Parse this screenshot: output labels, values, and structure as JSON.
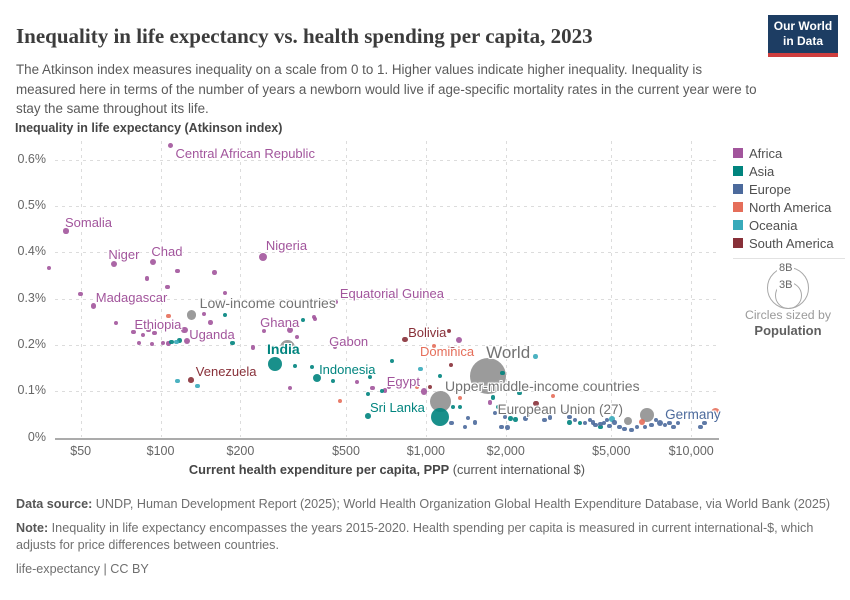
{
  "header": {
    "title": "Inequality in life expectancy vs. health spending per capita, 2023",
    "subtitle": "The Atkinson index measures inequality on a scale from 0 to 1. Higher values indicate higher inequality. Inequality is measured here in terms of the number of years a newborn would live if age-specific mortality rates in the current year were to stay the same throughout its life.",
    "logo_line1": "Our World",
    "logo_line2": "in Data"
  },
  "axes": {
    "y_title": "Inequality in life expectancy (Atkinson index)",
    "x_title_bold": "Current health expenditure per capita, PPP",
    "x_title_rest": " (current international $)"
  },
  "legend": {
    "items": [
      {
        "label": "Africa",
        "color": "#a2559c"
      },
      {
        "label": "Asia",
        "color": "#00847e"
      },
      {
        "label": "Europe",
        "color": "#4c6a9c"
      },
      {
        "label": "North America",
        "color": "#e56e5a"
      },
      {
        "label": "Oceania",
        "color": "#38aaba"
      },
      {
        "label": "South America",
        "color": "#883039"
      }
    ],
    "size_legend": {
      "big": "8B",
      "small": "3B",
      "caption1": "Circles sized by",
      "caption2": "Population"
    }
  },
  "footer": {
    "source_bold": "Data source:",
    "source_rest": " UNDP, Human Development Report (2025); World Health Organization Global Health Expenditure Database, via World Bank (2025)",
    "note_bold": "Note:",
    "note_rest": " Inequality in life expectancy encompasses the years 2015-2020. Health spending per capita is measured in current international-$, which adjusts for price differences between countries.",
    "license": "life-expectancy | CC BY"
  },
  "chart_data": {
    "type": "scatter",
    "x_scale": "log",
    "xlabel": "Current health expenditure per capita, PPP (current international $)",
    "ylabel": "Inequality in life expectancy (Atkinson index)",
    "x_ticks": [
      {
        "v": 50,
        "label": "$50"
      },
      {
        "v": 100,
        "label": "$100"
      },
      {
        "v": 200,
        "label": "$200"
      },
      {
        "v": 500,
        "label": "$500"
      },
      {
        "v": 1000,
        "label": "$1,000"
      },
      {
        "v": 2000,
        "label": "$2,000"
      },
      {
        "v": 5000,
        "label": "$5,000"
      },
      {
        "v": 10000,
        "label": "$10,000"
      }
    ],
    "y_ticks": [
      {
        "v": 0,
        "label": "0%"
      },
      {
        "v": 0.1,
        "label": "0.1%"
      },
      {
        "v": 0.2,
        "label": "0.2%"
      },
      {
        "v": 0.3,
        "label": "0.3%"
      },
      {
        "v": 0.4,
        "label": "0.4%"
      },
      {
        "v": 0.5,
        "label": "0.5%"
      },
      {
        "v": 0.6,
        "label": "0.6%"
      }
    ],
    "x_domain": [
      38,
      13000
    ],
    "y_domain": [
      0,
      0.66
    ],
    "grid": true,
    "legend_position": "right",
    "colors": {
      "africa": "#a2559c",
      "asia": "#00847e",
      "europe": "#4c6a9c",
      "northamerica": "#e56e5a",
      "oceania": "#38aaba",
      "southamerica": "#883039",
      "gray": "#8a8a8a",
      "gray_label": "#737373"
    },
    "points": [
      {
        "n": "Central African Republic",
        "x": 109,
        "y": 0.63,
        "r": 2.5,
        "c": "africa",
        "lb": [
          5,
          0,
          13
        ]
      },
      {
        "n": "Somalia",
        "x": 44,
        "y": 0.446,
        "r": 2.6,
        "c": "africa",
        "lb": [
          -1,
          -16,
          13
        ]
      },
      {
        "n": "Niger",
        "x": 67,
        "y": 0.375,
        "r": 3,
        "c": "africa",
        "lb": [
          -6,
          -17,
          13
        ]
      },
      {
        "n": "Chad",
        "x": 94,
        "y": 0.379,
        "r": 3,
        "c": "africa",
        "lb": [
          -2,
          -18,
          13
        ]
      },
      {
        "n": "Nigeria",
        "x": 243,
        "y": 0.39,
        "r": 4.2,
        "c": "africa",
        "lb": [
          3,
          -19,
          13
        ]
      },
      {
        "n": "Madagascar",
        "x": 56,
        "y": 0.284,
        "r": 2.6,
        "c": "africa",
        "lb": [
          2,
          -16,
          13
        ]
      },
      {
        "n": "Equatorial Guinea",
        "x": 458,
        "y": 0.293,
        "r": 2,
        "c": "africa",
        "lb": [
          4,
          -16,
          13
        ]
      },
      {
        "n": "Low-income countries",
        "x": 131,
        "y": 0.265,
        "r": 4.8,
        "c": "gray",
        "lb": [
          8,
          -20,
          14
        ]
      },
      {
        "n": "Ethiopia",
        "x": 123,
        "y": 0.232,
        "r": 3.4,
        "c": "africa",
        "lb": [
          -3,
          -13,
          13,
          "end"
        ]
      },
      {
        "n": "Uganda",
        "x": 126,
        "y": 0.208,
        "r": 3,
        "c": "africa",
        "lb": [
          2,
          -14,
          13
        ]
      },
      {
        "n": "Ghana",
        "x": 308,
        "y": 0.232,
        "r": 3,
        "c": "africa",
        "lb": [
          -30,
          -15,
          13
        ]
      },
      {
        "n": "Gabon",
        "x": 455,
        "y": 0.195,
        "r": 2,
        "c": "africa",
        "lb": [
          -6,
          -13,
          13
        ]
      },
      {
        "n": "India",
        "x": 270,
        "y": 0.158,
        "r": 7,
        "c": "asia",
        "lb": [
          -8,
          -23,
          14,
          "start",
          1
        ]
      },
      {
        "n": "Venezuela",
        "x": 130,
        "y": 0.124,
        "r": 2.8,
        "c": "southamerica",
        "lb": [
          5,
          -16,
          13
        ]
      },
      {
        "n": "Indonesia",
        "x": 389,
        "y": 0.129,
        "r": 4,
        "c": "asia",
        "lb": [
          2,
          -16,
          13
        ]
      },
      {
        "n": "Bolivia",
        "x": 835,
        "y": 0.211,
        "r": 2.6,
        "c": "southamerica",
        "lb": [
          3,
          -15,
          13
        ]
      },
      {
        "n": "Dominica",
        "x": 1073,
        "y": 0.198,
        "r": 2,
        "c": "northamerica",
        "lb": [
          -14,
          -2,
          13
        ]
      },
      {
        "n": "Egypt",
        "x": 984,
        "y": 0.1,
        "r": 3.4,
        "c": "africa",
        "lb": [
          -4,
          -17,
          13,
          "end"
        ]
      },
      {
        "n": "Sri Lanka",
        "x": 605,
        "y": 0.046,
        "r": 2.8,
        "c": "asia",
        "lb": [
          2,
          -16,
          13
        ]
      },
      {
        "n": "World",
        "x": 1716,
        "y": 0.133,
        "r": 18,
        "c": "gray",
        "lb": [
          -2,
          -33,
          17
        ]
      },
      {
        "n": "Upper-middle-income countries",
        "x": 1131,
        "y": 0.077,
        "r": 10.5,
        "c": "gray",
        "lb": [
          5,
          -24,
          14
        ]
      },
      {
        "n": "European Union (27)",
        "x": 5780,
        "y": 0.036,
        "r": 4.2,
        "c": "gray",
        "lb": [
          -5,
          -19,
          13.5,
          "end"
        ]
      },
      {
        "n": "Germany",
        "x": 7635,
        "y": 0.031,
        "r": 3.2,
        "c": "europe",
        "lb": [
          5,
          -16,
          13.5
        ]
      },
      {
        "x": 1131,
        "y": 0.045,
        "r": 9,
        "c": "asia"
      },
      {
        "x": 300,
        "y": 0.195,
        "r": 7.5,
        "c": "gray"
      },
      {
        "x": 6815,
        "y": 0.049,
        "r": 7,
        "c": "gray"
      },
      {
        "x": 12300,
        "y": 0.055,
        "r": 4.5,
        "c": "northamerica"
      },
      {
        "x": 38,
        "y": 0.366,
        "c": "africa"
      },
      {
        "x": 50,
        "y": 0.31,
        "c": "africa"
      },
      {
        "x": 89,
        "y": 0.344,
        "c": "africa"
      },
      {
        "x": 106,
        "y": 0.325,
        "c": "africa"
      },
      {
        "x": 116,
        "y": 0.36,
        "c": "africa"
      },
      {
        "x": 160,
        "y": 0.357,
        "c": "africa"
      },
      {
        "x": 175,
        "y": 0.312,
        "c": "africa"
      },
      {
        "x": 68,
        "y": 0.247,
        "c": "africa"
      },
      {
        "x": 79,
        "y": 0.228,
        "c": "africa"
      },
      {
        "x": 86,
        "y": 0.221,
        "c": "africa"
      },
      {
        "x": 90,
        "y": 0.232,
        "c": "africa"
      },
      {
        "x": 95,
        "y": 0.226,
        "c": "africa"
      },
      {
        "x": 146,
        "y": 0.267,
        "c": "africa"
      },
      {
        "x": 154,
        "y": 0.249,
        "c": "africa"
      },
      {
        "x": 83,
        "y": 0.204,
        "c": "africa"
      },
      {
        "x": 93,
        "y": 0.202,
        "c": "africa"
      },
      {
        "x": 102,
        "y": 0.204,
        "c": "africa"
      },
      {
        "x": 107,
        "y": 0.203,
        "c": "africa"
      },
      {
        "x": 223,
        "y": 0.195,
        "c": "africa"
      },
      {
        "x": 245,
        "y": 0.23,
        "c": "africa"
      },
      {
        "x": 379,
        "y": 0.26,
        "c": "africa"
      },
      {
        "x": 327,
        "y": 0.217,
        "c": "africa"
      },
      {
        "x": 382,
        "y": 0.256,
        "c": "africa"
      },
      {
        "x": 308,
        "y": 0.107,
        "c": "africa"
      },
      {
        "x": 550,
        "y": 0.12,
        "c": "africa"
      },
      {
        "x": 630,
        "y": 0.107,
        "c": "africa"
      },
      {
        "x": 726,
        "y": 0.109,
        "c": "africa"
      },
      {
        "x": 701,
        "y": 0.102,
        "c": "africa"
      },
      {
        "x": 1334,
        "y": 0.211,
        "r": 3,
        "c": "africa"
      },
      {
        "x": 1745,
        "y": 0.075,
        "c": "africa"
      },
      {
        "x": 175,
        "y": 0.265,
        "c": "asia"
      },
      {
        "x": 110,
        "y": 0.206,
        "c": "asia"
      },
      {
        "x": 118,
        "y": 0.21,
        "c": "asia"
      },
      {
        "x": 187,
        "y": 0.204,
        "c": "asia"
      },
      {
        "x": 344,
        "y": 0.254,
        "c": "asia"
      },
      {
        "x": 372,
        "y": 0.152,
        "c": "asia"
      },
      {
        "x": 321,
        "y": 0.154,
        "c": "asia"
      },
      {
        "x": 447,
        "y": 0.122,
        "c": "asia"
      },
      {
        "x": 616,
        "y": 0.131,
        "c": "asia"
      },
      {
        "x": 683,
        "y": 0.1,
        "c": "asia"
      },
      {
        "x": 745,
        "y": 0.165,
        "c": "asia"
      },
      {
        "x": 605,
        "y": 0.094,
        "c": "asia"
      },
      {
        "x": 1266,
        "y": 0.066,
        "c": "asia"
      },
      {
        "x": 1345,
        "y": 0.066,
        "c": "asia"
      },
      {
        "x": 1790,
        "y": 0.087,
        "c": "asia"
      },
      {
        "x": 2250,
        "y": 0.096,
        "c": "asia"
      },
      {
        "x": 3810,
        "y": 0.031,
        "c": "asia"
      },
      {
        "x": 4560,
        "y": 0.023,
        "c": "asia"
      },
      {
        "x": 1131,
        "y": 0.133,
        "c": "asia"
      },
      {
        "x": 1940,
        "y": 0.139,
        "c": "asia"
      },
      {
        "x": 1870,
        "y": 0.066,
        "c": "asia"
      },
      {
        "x": 2080,
        "y": 0.041,
        "c": "asia"
      },
      {
        "x": 2180,
        "y": 0.039,
        "c": "asia"
      },
      {
        "x": 3480,
        "y": 0.033,
        "c": "asia"
      },
      {
        "x": 1442,
        "y": 0.042,
        "c": "europe"
      },
      {
        "x": 1823,
        "y": 0.053,
        "c": "europe"
      },
      {
        "x": 1988,
        "y": 0.044,
        "c": "europe"
      },
      {
        "x": 2167,
        "y": 0.055,
        "c": "europe"
      },
      {
        "x": 1533,
        "y": 0.033,
        "c": "europe"
      },
      {
        "x": 1404,
        "y": 0.023,
        "c": "europe"
      },
      {
        "x": 1930,
        "y": 0.023,
        "c": "europe"
      },
      {
        "x": 2032,
        "y": 0.021,
        "c": "europe"
      },
      {
        "x": 1250,
        "y": 0.031,
        "c": "europe"
      },
      {
        "x": 2380,
        "y": 0.041,
        "c": "europe"
      },
      {
        "x": 2430,
        "y": 0.049,
        "c": "europe"
      },
      {
        "x": 2800,
        "y": 0.038,
        "c": "europe"
      },
      {
        "x": 2940,
        "y": 0.043,
        "c": "europe"
      },
      {
        "x": 3346,
        "y": 0.053,
        "c": "europe"
      },
      {
        "x": 3480,
        "y": 0.044,
        "c": "europe"
      },
      {
        "x": 3650,
        "y": 0.038,
        "c": "europe"
      },
      {
        "x": 3980,
        "y": 0.031,
        "c": "europe"
      },
      {
        "x": 4160,
        "y": 0.038,
        "c": "europe"
      },
      {
        "x": 4350,
        "y": 0.027,
        "c": "europe"
      },
      {
        "x": 4690,
        "y": 0.031,
        "c": "europe"
      },
      {
        "x": 4920,
        "y": 0.025,
        "c": "europe"
      },
      {
        "x": 5140,
        "y": 0.033,
        "c": "europe"
      },
      {
        "x": 5370,
        "y": 0.023,
        "c": "europe"
      },
      {
        "x": 5610,
        "y": 0.018,
        "c": "europe"
      },
      {
        "x": 5960,
        "y": 0.016,
        "c": "europe"
      },
      {
        "x": 6240,
        "y": 0.023,
        "c": "europe"
      },
      {
        "x": 6700,
        "y": 0.023,
        "c": "europe"
      },
      {
        "x": 7080,
        "y": 0.027,
        "c": "europe"
      },
      {
        "x": 7380,
        "y": 0.038,
        "c": "europe"
      },
      {
        "x": 7960,
        "y": 0.027,
        "c": "europe"
      },
      {
        "x": 8280,
        "y": 0.031,
        "c": "europe"
      },
      {
        "x": 8600,
        "y": 0.023,
        "c": "europe"
      },
      {
        "x": 8920,
        "y": 0.031,
        "c": "europe"
      },
      {
        "x": 10850,
        "y": 0.023,
        "c": "europe"
      },
      {
        "x": 11240,
        "y": 0.031,
        "c": "europe"
      },
      {
        "x": 4267,
        "y": 0.033,
        "c": "europe"
      },
      {
        "x": 4560,
        "y": 0.029,
        "c": "europe"
      },
      {
        "x": 4815,
        "y": 0.038,
        "c": "europe"
      },
      {
        "x": 107,
        "y": 0.262,
        "c": "northamerica"
      },
      {
        "x": 475,
        "y": 0.079,
        "c": "northamerica"
      },
      {
        "x": 926,
        "y": 0.109,
        "c": "northamerica"
      },
      {
        "x": 1345,
        "y": 0.085,
        "c": "northamerica"
      },
      {
        "x": 3016,
        "y": 0.09,
        "c": "northamerica"
      },
      {
        "x": 6530,
        "y": 0.033,
        "r": 3,
        "c": "northamerica"
      },
      {
        "x": 116,
        "y": 0.122,
        "c": "oceania"
      },
      {
        "x": 138,
        "y": 0.111,
        "c": "oceania"
      },
      {
        "x": 2590,
        "y": 0.175,
        "c": "oceania"
      },
      {
        "x": 953,
        "y": 0.148,
        "c": "oceania"
      },
      {
        "x": 5030,
        "y": 0.04,
        "r": 2.8,
        "c": "oceania"
      },
      {
        "x": 115,
        "y": 0.206,
        "c": "oceania"
      },
      {
        "x": 1244,
        "y": 0.157,
        "c": "southamerica"
      },
      {
        "x": 1036,
        "y": 0.109,
        "c": "southamerica"
      },
      {
        "x": 1223,
        "y": 0.23,
        "c": "southamerica"
      },
      {
        "x": 1260,
        "y": 0.191,
        "c": "southamerica"
      },
      {
        "x": 2600,
        "y": 0.074,
        "r": 2.6,
        "c": "southamerica"
      }
    ]
  }
}
